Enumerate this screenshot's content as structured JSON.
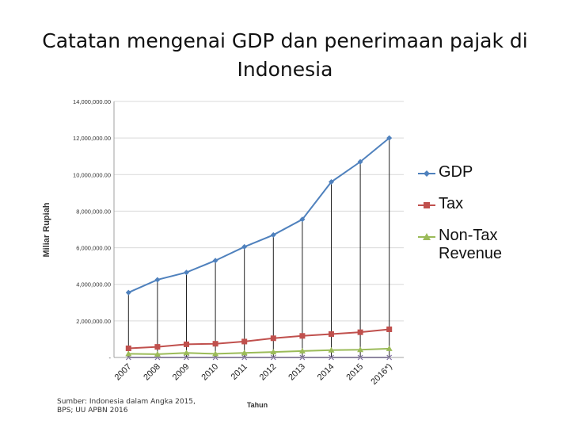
{
  "slide": {
    "title": "Catatan mengenai GDP dan penerimaan pajak di Indonesia",
    "source": "Sumber: Indonesia dalam Angka 2015, BPS; UU APBN 2016"
  },
  "legend": [
    {
      "label": "GDP",
      "color": "#4f81bd",
      "marker": "diamond"
    },
    {
      "label": "Tax",
      "color": "#c0504d",
      "marker": "square"
    },
    {
      "label": "Non-Tax Revenue",
      "color": "#9bbb59",
      "marker": "triangle"
    }
  ],
  "chart_data": {
    "type": "line",
    "xlabel": "Tahun",
    "ylabel": "Miliar Rupiah",
    "categories": [
      "2007",
      "2008",
      "2009",
      "2010",
      "2011",
      "2012",
      "2013",
      "2014",
      "2015",
      "2016*)"
    ],
    "ylim": [
      0,
      14000000
    ],
    "yticks": [
      0,
      2000000,
      4000000,
      6000000,
      8000000,
      10000000,
      12000000,
      14000000
    ],
    "ytick_labels": [
      "-",
      "2,000,000.00",
      "4,000,000.00",
      "6,000,000.00",
      "8,000,000.00",
      "10,000,000.00",
      "12,000,000.00",
      "14,000,000.00"
    ],
    "grid": true,
    "legend_position": "right",
    "drop_lines": true,
    "series": [
      {
        "name": "GDP",
        "color": "#4f81bd",
        "marker": "diamond",
        "values": [
          3550000,
          4250000,
          4650000,
          5300000,
          6050000,
          6700000,
          7550000,
          9600000,
          10700000,
          12000000
        ]
      },
      {
        "name": "Tax",
        "color": "#c0504d",
        "marker": "square",
        "values": [
          500000,
          580000,
          720000,
          750000,
          870000,
          1050000,
          1180000,
          1280000,
          1380000,
          1540000
        ]
      },
      {
        "name": "Non-Tax Revenue",
        "color": "#9bbb59",
        "marker": "triangle",
        "values": [
          200000,
          180000,
          250000,
          200000,
          250000,
          300000,
          350000,
          400000,
          420000,
          480000
        ]
      },
      {
        "name": "",
        "color": "#7e6ea0",
        "marker": "x",
        "values": [
          0,
          0,
          0,
          0,
          0,
          0,
          0,
          0,
          0,
          0
        ]
      }
    ]
  }
}
